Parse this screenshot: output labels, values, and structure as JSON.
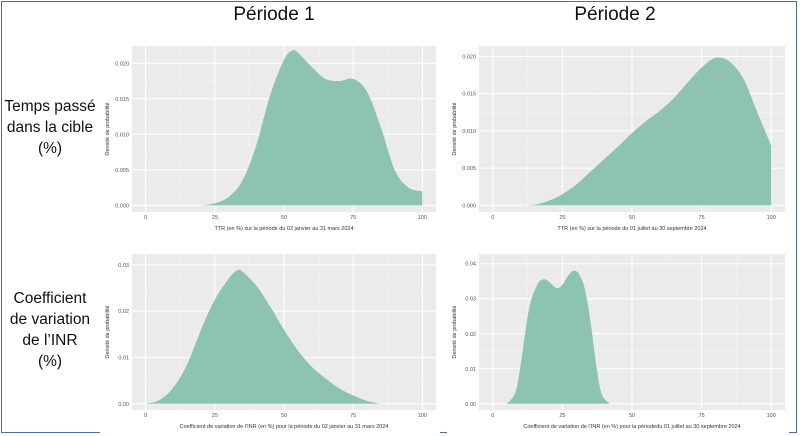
{
  "column_titles": [
    "Période 1",
    "Période 2"
  ],
  "row_labels": [
    [
      "Temps passé",
      "dans la cible",
      "(%)"
    ],
    [
      "Coefficient",
      "de variation",
      "de l’INR",
      "(%)"
    ]
  ],
  "colors": {
    "fill": "#8dc4af",
    "panel_bg": "#ebebeb",
    "grid": "#ffffff",
    "frame": "#4a6fa5"
  },
  "chart_data": [
    {
      "type": "area",
      "series_name": "density",
      "xlabel": "TTR (en %) sur la période du 02 janvier au 31 mars 2024",
      "ylabel": "Densité de probabilité",
      "xlim": [
        0,
        100
      ],
      "ylim": [
        0,
        0.0215
      ],
      "xticks": [
        0,
        25,
        50,
        75,
        100
      ],
      "yticks": [
        0.0,
        0.005,
        0.01,
        0.015,
        0.02
      ],
      "ytick_labels": [
        "0.000",
        "0.005",
        "0.010",
        "0.015",
        "0.020"
      ],
      "x": [
        20,
        25,
        30,
        35,
        40,
        45,
        50,
        53,
        55,
        60,
        65,
        70,
        75,
        80,
        85,
        90,
        95,
        100
      ],
      "y": [
        0.0,
        0.0003,
        0.0012,
        0.0035,
        0.0085,
        0.0155,
        0.0205,
        0.0218,
        0.0215,
        0.0195,
        0.0178,
        0.0175,
        0.0178,
        0.016,
        0.011,
        0.005,
        0.0025,
        0.002
      ]
    },
    {
      "type": "area",
      "series_name": "density",
      "xlabel": "TTR (en %) sur la période du 01 juillet au 30 septembre 2024",
      "ylabel": "Densité de probabilité",
      "xlim": [
        0,
        100
      ],
      "ylim": [
        0,
        0.0205
      ],
      "xticks": [
        0,
        25,
        50,
        75,
        100
      ],
      "yticks": [
        0.0,
        0.005,
        0.01,
        0.015,
        0.02
      ],
      "ytick_labels": [
        "0.000",
        "0.005",
        "0.010",
        "0.015",
        "0.020"
      ],
      "x": [
        10,
        15,
        20,
        25,
        30,
        35,
        40,
        45,
        50,
        55,
        60,
        65,
        70,
        75,
        80,
        85,
        90,
        95,
        100
      ],
      "y": [
        0.0,
        0.0001,
        0.0006,
        0.0015,
        0.0028,
        0.0045,
        0.0062,
        0.0079,
        0.0097,
        0.0113,
        0.0127,
        0.0144,
        0.0165,
        0.0185,
        0.0198,
        0.0193,
        0.017,
        0.0125,
        0.008
      ]
    },
    {
      "type": "area",
      "series_name": "density",
      "xlabel": "Coefficient de variation de l’INR (en %) pour la période du 02 janvier au 31 mars 2024",
      "ylabel": "Densité de probabilité",
      "xlim": [
        0,
        100
      ],
      "ylim": [
        0,
        0.031
      ],
      "xticks": [
        0,
        25,
        50,
        75,
        100
      ],
      "yticks": [
        0.0,
        0.01,
        0.02,
        0.03
      ],
      "ytick_labels": [
        "0.00",
        "0.01",
        "0.02",
        "0.03"
      ],
      "x": [
        0,
        5,
        10,
        15,
        20,
        25,
        30,
        33,
        35,
        40,
        45,
        50,
        55,
        60,
        65,
        70,
        75,
        80,
        85
      ],
      "y": [
        0.0,
        0.0008,
        0.0035,
        0.0085,
        0.016,
        0.0225,
        0.027,
        0.0288,
        0.0285,
        0.0255,
        0.021,
        0.016,
        0.0115,
        0.008,
        0.0055,
        0.0033,
        0.0018,
        0.0006,
        0.0
      ]
    },
    {
      "type": "area",
      "series_name": "density",
      "xlabel": "Coefficient de variation de l’INR (en %) pour la périodedu 01 juillet au 30 septembre 2024",
      "ylabel": "Densité de probabilité",
      "xlim": [
        0,
        100
      ],
      "ylim": [
        0,
        0.041
      ],
      "xticks": [
        0,
        25,
        50,
        75,
        100
      ],
      "yticks": [
        0.0,
        0.01,
        0.02,
        0.03,
        0.04
      ],
      "ytick_labels": [
        "0.00",
        "0.01",
        "0.02",
        "0.03",
        "0.04"
      ],
      "x": [
        5,
        8,
        10,
        13,
        16,
        18,
        20,
        23,
        25,
        27,
        29,
        31,
        33,
        35,
        37,
        39,
        42
      ],
      "y": [
        0.0,
        0.003,
        0.011,
        0.027,
        0.034,
        0.0355,
        0.035,
        0.033,
        0.034,
        0.0365,
        0.038,
        0.037,
        0.033,
        0.024,
        0.012,
        0.003,
        0.0
      ]
    }
  ]
}
